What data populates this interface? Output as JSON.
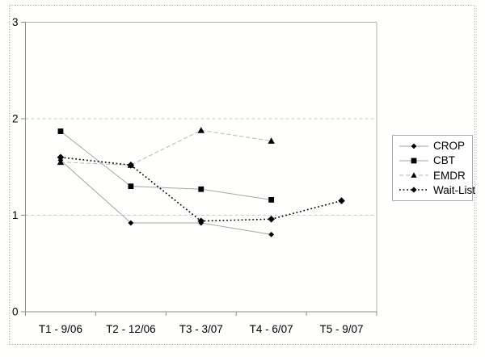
{
  "chart_data": {
    "type": "line",
    "title": "",
    "xlabel": "",
    "ylabel": "",
    "categories": [
      "T1 - 9/06",
      "T2 - 12/06",
      "T3 - 3/07",
      "T4 - 6/07",
      "T5 - 9/07"
    ],
    "series": [
      {
        "name": "CROP",
        "marker": "diamond",
        "line_style": "solid",
        "line_color": "#a6a6a6",
        "marker_color": "#000000",
        "marker_size": 3.4,
        "values": [
          1.57,
          0.92,
          0.92,
          0.8,
          null
        ]
      },
      {
        "name": "CBT",
        "marker": "square",
        "line_style": "solid",
        "line_color": "#a6a6a6",
        "marker_color": "#000000",
        "marker_size": 3.4,
        "values": [
          1.87,
          1.3,
          1.27,
          1.16,
          null
        ]
      },
      {
        "name": "EMDR",
        "marker": "triangle",
        "line_style": "dashed",
        "line_color": "#b5b5b5",
        "marker_color": "#000000",
        "marker_size": 4.2,
        "values": [
          1.55,
          1.52,
          1.88,
          1.77,
          null
        ]
      },
      {
        "name": "Wait-List",
        "marker": "diamond",
        "line_style": "dotted",
        "line_color": "#000000",
        "marker_color": "#000000",
        "marker_size": 4.3,
        "values": [
          1.6,
          1.52,
          0.94,
          0.96,
          1.15
        ]
      }
    ],
    "ylim": [
      0,
      3
    ],
    "yticks": [
      0,
      1,
      2,
      3
    ],
    "grid": "horizontal dashed gridlines at 1 and 2, solid top border at 3",
    "legend_position": "right"
  },
  "colors": {
    "axis": "#8c8c8c",
    "gridline": "#c9c9c9",
    "plot_border": "#b2b2b2",
    "background": "#ffffff"
  }
}
